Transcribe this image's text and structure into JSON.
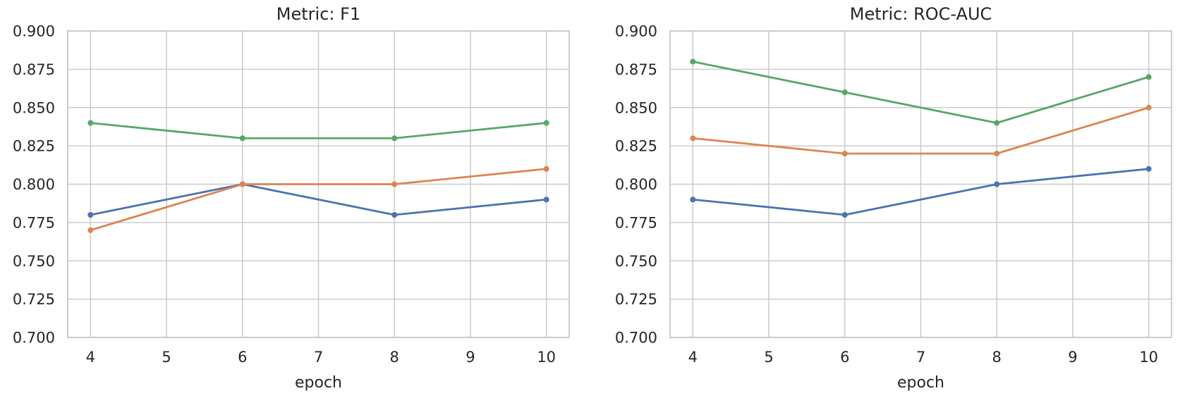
{
  "styles": {
    "background": "#FFFFFF",
    "grid_color": "#CCCCCC",
    "axis_edge_color": "#CCCCCC",
    "text_color": "#262626",
    "series_colors": [
      "#4C72B0",
      "#DD8452",
      "#55A868"
    ]
  },
  "chart_data": [
    {
      "type": "line",
      "title": "Metric: F1",
      "xlabel": "epoch",
      "ylabel": "",
      "x": [
        4,
        6,
        8,
        10
      ],
      "xlim": [
        3.7,
        10.3
      ],
      "ylim": [
        0.7,
        0.9
      ],
      "xticks": [
        4,
        5,
        6,
        7,
        8,
        9,
        10
      ],
      "yticks": [
        0.7,
        0.725,
        0.75,
        0.775,
        0.8,
        0.825,
        0.85,
        0.875,
        0.9
      ],
      "ytick_labels": [
        "0.700",
        "0.725",
        "0.750",
        "0.775",
        "0.800",
        "0.825",
        "0.850",
        "0.875",
        "0.900"
      ],
      "grid": true,
      "legend": "none",
      "marker": "circle",
      "series": [
        {
          "name": "blue",
          "color": "#4C72B0",
          "values": [
            0.78,
            0.8,
            0.78,
            0.79
          ]
        },
        {
          "name": "orange",
          "color": "#DD8452",
          "values": [
            0.77,
            0.8,
            0.8,
            0.81
          ]
        },
        {
          "name": "green",
          "color": "#55A868",
          "values": [
            0.84,
            0.83,
            0.83,
            0.84
          ]
        }
      ]
    },
    {
      "type": "line",
      "title": "Metric: ROC-AUC",
      "xlabel": "epoch",
      "ylabel": "",
      "x": [
        4,
        6,
        8,
        10
      ],
      "xlim": [
        3.7,
        10.3
      ],
      "ylim": [
        0.7,
        0.9
      ],
      "xticks": [
        4,
        5,
        6,
        7,
        8,
        9,
        10
      ],
      "yticks": [
        0.7,
        0.725,
        0.75,
        0.775,
        0.8,
        0.825,
        0.85,
        0.875,
        0.9
      ],
      "ytick_labels": [
        "0.700",
        "0.725",
        "0.750",
        "0.775",
        "0.800",
        "0.825",
        "0.850",
        "0.875",
        "0.900"
      ],
      "grid": true,
      "legend": "none",
      "marker": "circle",
      "series": [
        {
          "name": "blue",
          "color": "#4C72B0",
          "values": [
            0.79,
            0.78,
            0.8,
            0.81
          ]
        },
        {
          "name": "orange",
          "color": "#DD8452",
          "values": [
            0.83,
            0.82,
            0.82,
            0.85
          ]
        },
        {
          "name": "green",
          "color": "#55A868",
          "values": [
            0.88,
            0.86,
            0.84,
            0.87
          ]
        }
      ]
    }
  ]
}
